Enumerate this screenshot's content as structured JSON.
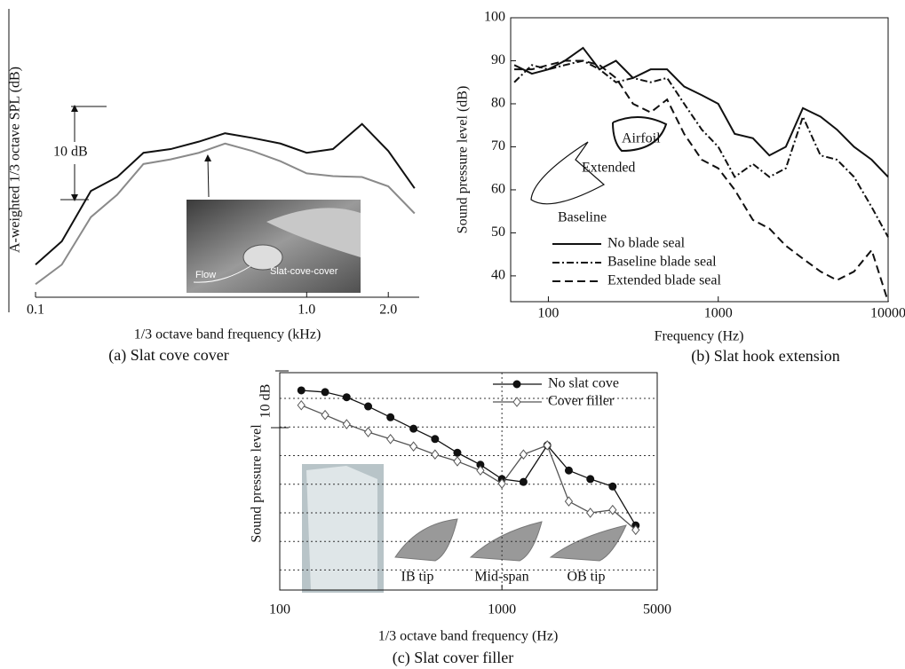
{
  "chart_data": [
    {
      "type": "line",
      "caption": "(a) Slat cove cover",
      "y_label": "A-weighted 1/3 octave SPL (dB)",
      "x_label": "1/3 octave band frequency (kHz)",
      "annotations": [
        "10 dB",
        "Slat-cove-cover",
        "Flow"
      ],
      "xlog": true,
      "xlim": [
        0.1,
        2.6
      ],
      "ylim": [
        0,
        30
      ],
      "xticks": [
        0.1,
        {
          "value": 1.0,
          "label": "1.0"
        },
        {
          "value": 2.0,
          "label": "2.0"
        }
      ],
      "x": [
        0.1,
        0.125,
        0.16,
        0.2,
        0.25,
        0.315,
        0.4,
        0.5,
        0.63,
        0.8,
        1.0,
        1.25,
        1.6,
        2.0,
        2.5
      ],
      "series": [
        {
          "color": "#111111",
          "values": [
            3.5,
            6.0,
            11.4,
            12.9,
            15.5,
            15.9,
            16.7,
            17.6,
            17.1,
            16.5,
            15.5,
            15.9,
            18.6,
            15.7,
            11.7
          ]
        },
        {
          "color": "#8a8a8a",
          "values": [
            1.4,
            3.5,
            8.6,
            11.0,
            14.3,
            14.8,
            15.5,
            16.5,
            15.7,
            14.6,
            13.3,
            13.0,
            12.9,
            11.9,
            9.0
          ]
        }
      ]
    },
    {
      "type": "line",
      "caption": "(b) Slat hook extension",
      "y_label": "Sound pressure level (dB)",
      "x_label": "Frequency (Hz)",
      "annotations": [
        "Airfoil",
        "Extended",
        "Baseline"
      ],
      "xlog": true,
      "xlim": [
        60,
        10000
      ],
      "ylim": [
        34,
        100
      ],
      "xticks": [
        100,
        1000,
        10000
      ],
      "yticks": [
        40,
        50,
        60,
        70,
        80,
        90,
        100
      ],
      "x": [
        63,
        80,
        100,
        125,
        160,
        200,
        250,
        315,
        400,
        500,
        630,
        800,
        1000,
        1250,
        1600,
        2000,
        2500,
        3150,
        4000,
        5000,
        6300,
        8000,
        10000
      ],
      "series": [
        {
          "name": "No blade seal",
          "color": "#111111",
          "dash": "solid",
          "values": [
            89,
            87,
            88,
            90,
            93,
            88,
            90,
            86,
            88,
            88,
            84,
            82,
            80,
            73,
            72,
            68,
            70,
            79,
            77,
            74,
            70,
            67,
            63
          ]
        },
        {
          "name": "Baseline blade seal",
          "color": "#111111",
          "dash": "dash-dot",
          "values": [
            85,
            89,
            88,
            89,
            90,
            88,
            85,
            86,
            85,
            86,
            80,
            74,
            70,
            63,
            66,
            63,
            65,
            77,
            68,
            67,
            63,
            56,
            49
          ]
        },
        {
          "name": "Extended blade seal",
          "color": "#111111",
          "dash": "dashed",
          "values": [
            88,
            88,
            89,
            90,
            90,
            89,
            86,
            80,
            78,
            81,
            73,
            67,
            65,
            60,
            53,
            51,
            47,
            44,
            41,
            39,
            41,
            46,
            34
          ]
        }
      ]
    },
    {
      "type": "line",
      "caption": "(c) Slat cover filler",
      "y_label": "Sound pressure level",
      "x_label": "1/3 octave band frequency (Hz)",
      "annotations": [
        "10 dB",
        "IB tip",
        "Mid-span",
        "OB tip"
      ],
      "xlog": true,
      "xlim": [
        100,
        5000
      ],
      "ylim": [
        0,
        38
      ],
      "xticks": [
        100,
        1000,
        5000
      ],
      "ygrid": [
        3.5,
        8.5,
        13.5,
        18.5,
        23.5,
        28.5,
        33.5
      ],
      "xgrid": [
        1000
      ],
      "x": [
        125,
        160,
        200,
        250,
        315,
        400,
        500,
        630,
        800,
        1000,
        1250,
        1600,
        2000,
        2500,
        3150,
        4000
      ],
      "series": [
        {
          "name": "No slat cove",
          "color": "#111111",
          "marker": "filled-circle",
          "values": [
            34.9,
            34.6,
            33.7,
            32.1,
            30.2,
            28.2,
            26.4,
            24.0,
            21.9,
            19.4,
            18.9,
            25.3,
            20.9,
            19.4,
            18.1,
            11.3
          ]
        },
        {
          "name": "Cover filler",
          "color": "#555555",
          "marker": "open-diamond",
          "values": [
            32.3,
            30.6,
            29.0,
            27.6,
            26.4,
            25.1,
            23.7,
            22.5,
            20.9,
            18.6,
            23.7,
            25.3,
            15.5,
            13.5,
            14.0,
            10.5
          ]
        }
      ]
    }
  ]
}
